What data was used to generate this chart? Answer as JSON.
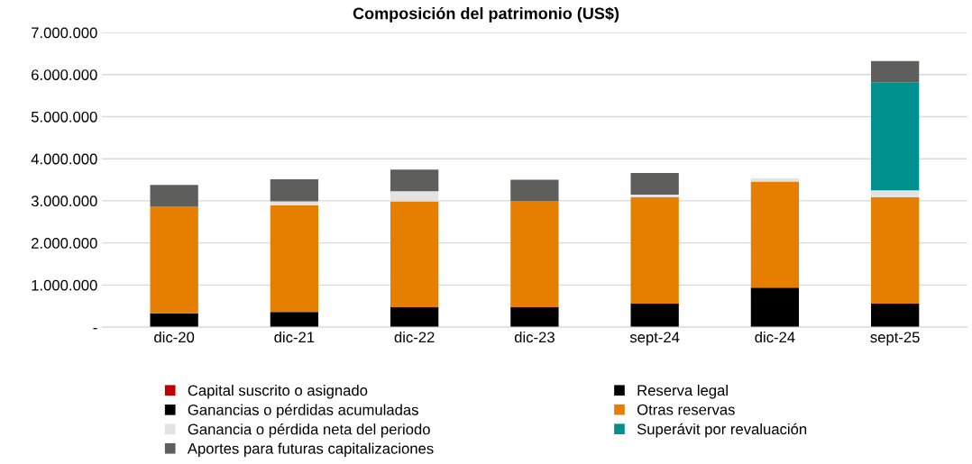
{
  "chart_data": {
    "type": "bar",
    "title": "Composición del patrimonio (US$)",
    "stacked": true,
    "categories": [
      "dic-20",
      "dic-21",
      "dic-22",
      "dic-23",
      "sept-24",
      "dic-24",
      "sept-25"
    ],
    "series": [
      {
        "name": "Capital suscrito o asignado",
        "color": "#c00000",
        "values": [
          null,
          null,
          null,
          null,
          null,
          null,
          null
        ]
      },
      {
        "name": "Reserva legal",
        "color": "#000000",
        "values": [
          330000,
          360000,
          470000,
          470000,
          560000,
          940000,
          560000
        ]
      },
      {
        "name": "Ganancias o pérdidas acumuladas",
        "color": "#000000",
        "values": [
          null,
          null,
          null,
          null,
          null,
          null,
          null
        ]
      },
      {
        "name": "Otras reservas",
        "color": "#e67e00",
        "values": [
          2540000,
          2530000,
          2520000,
          2520000,
          2530000,
          2520000,
          2530000
        ]
      },
      {
        "name": "Ganancia o pérdida neta del periodo",
        "color": "#e3e3e3",
        "values": [
          null,
          100000,
          240000,
          null,
          60000,
          80000,
          160000
        ]
      },
      {
        "name": "Superávit por revaluación",
        "color": "#00918f",
        "values": [
          null,
          null,
          null,
          null,
          null,
          null,
          2570000
        ]
      },
      {
        "name": "Aportes para futuras capitalizaciones",
        "color": "#5e5e5c",
        "values": [
          510000,
          520000,
          510000,
          510000,
          510000,
          null,
          500000
        ]
      }
    ],
    "ylim": [
      0,
      7000000
    ],
    "yticks": [
      {
        "value": 0,
        "label": "-"
      },
      {
        "value": 1000000,
        "label": "1.000.000"
      },
      {
        "value": 2000000,
        "label": "2.000.000"
      },
      {
        "value": 3000000,
        "label": "3.000.000"
      },
      {
        "value": 4000000,
        "label": "4.000.000"
      },
      {
        "value": 5000000,
        "label": "5.000.000"
      },
      {
        "value": 6000000,
        "label": "6.000.000"
      },
      {
        "value": 7000000,
        "label": "7.000.000"
      }
    ],
    "grid": "y",
    "legend": "bottom"
  }
}
